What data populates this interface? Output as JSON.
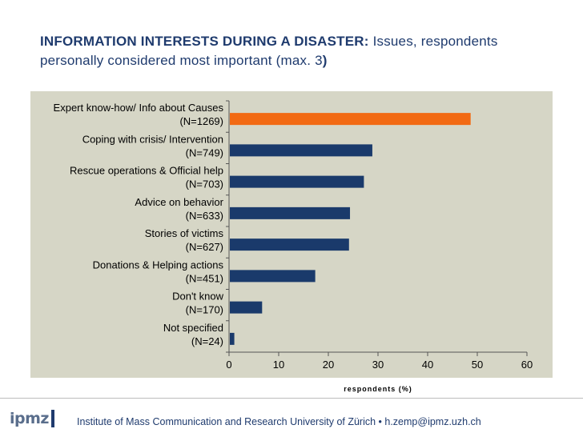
{
  "title": {
    "bold": "INFORMATION INTERESTS DURING A DISASTER:",
    "rest": " Issues, respondents personally considered most important (max. 3",
    "close": ")"
  },
  "footer": {
    "logo_text": "ipmz",
    "text": "Institute of Mass Communication and Research University of Zürich •  h.zemp@ipmz.uzh.ch"
  },
  "colors": {
    "highlight": "#f26a13",
    "bar": "#1a3a6b",
    "panel": "#d6d6c6"
  },
  "chart_data": {
    "type": "bar",
    "orientation": "horizontal",
    "title": "",
    "xlabel": "respondents (%)",
    "ylabel": "",
    "xlim": [
      0,
      60
    ],
    "xticks": [
      0,
      10,
      20,
      30,
      40,
      50,
      60
    ],
    "grid": false,
    "categories": [
      {
        "label": "Expert know-how/ Info about Causes",
        "n": "(N=1269)",
        "value": 48.5,
        "highlight": true
      },
      {
        "label": "Coping with crisis/ Intervention",
        "n": "(N=749)",
        "value": 28.7,
        "highlight": false
      },
      {
        "label": "Rescue operations & Official help",
        "n": "(N=703)",
        "value": 27.0,
        "highlight": false
      },
      {
        "label": "Advice on behavior",
        "n": "(N=633)",
        "value": 24.2,
        "highlight": false
      },
      {
        "label": "Stories of victims",
        "n": "(N=627)",
        "value": 24.0,
        "highlight": false
      },
      {
        "label": "Donations & Helping actions",
        "n": "(N=451)",
        "value": 17.2,
        "highlight": false
      },
      {
        "label": "Don't know",
        "n": "(N=170)",
        "value": 6.5,
        "highlight": false
      },
      {
        "label": "Not specified",
        "n": "(N=24)",
        "value": 0.9,
        "highlight": false
      }
    ]
  }
}
